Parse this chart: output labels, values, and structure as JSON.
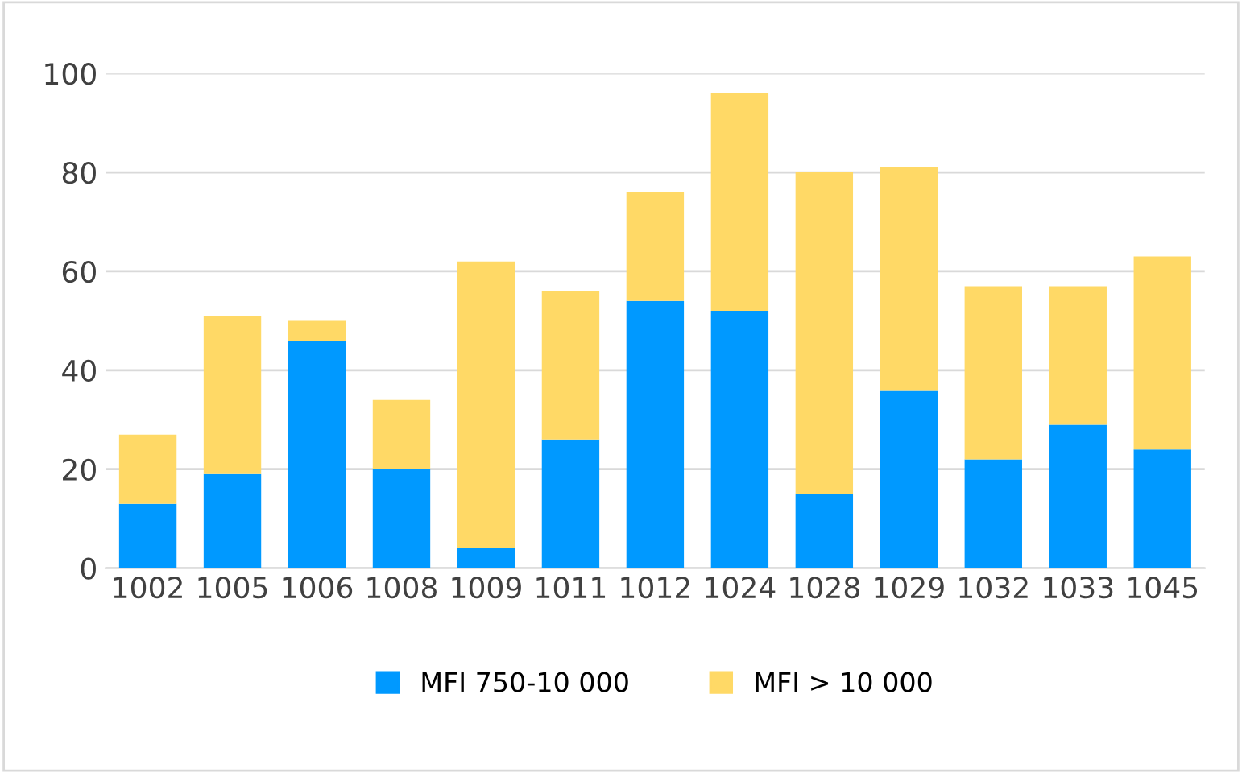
{
  "chart_data": {
    "type": "bar",
    "stacked": true,
    "categories": [
      "1002",
      "1005",
      "1006",
      "1008",
      "1009",
      "1011",
      "1012",
      "1024",
      "1028",
      "1029",
      "1032",
      "1033",
      "1045"
    ],
    "series": [
      {
        "name": "MFI 750-10 000",
        "color": "#0099ff",
        "values": [
          13,
          19,
          46,
          20,
          4,
          26,
          54,
          52,
          15,
          36,
          22,
          29,
          24
        ]
      },
      {
        "name": "MFI > 10 000",
        "color": "#ffd966",
        "values": [
          14,
          32,
          4,
          14,
          58,
          30,
          22,
          44,
          65,
          45,
          35,
          28,
          39
        ]
      }
    ],
    "ylim": [
      0,
      100
    ],
    "yticks": [
      0,
      20,
      40,
      60,
      80,
      100
    ],
    "grid": "y",
    "legend": "bottom"
  }
}
